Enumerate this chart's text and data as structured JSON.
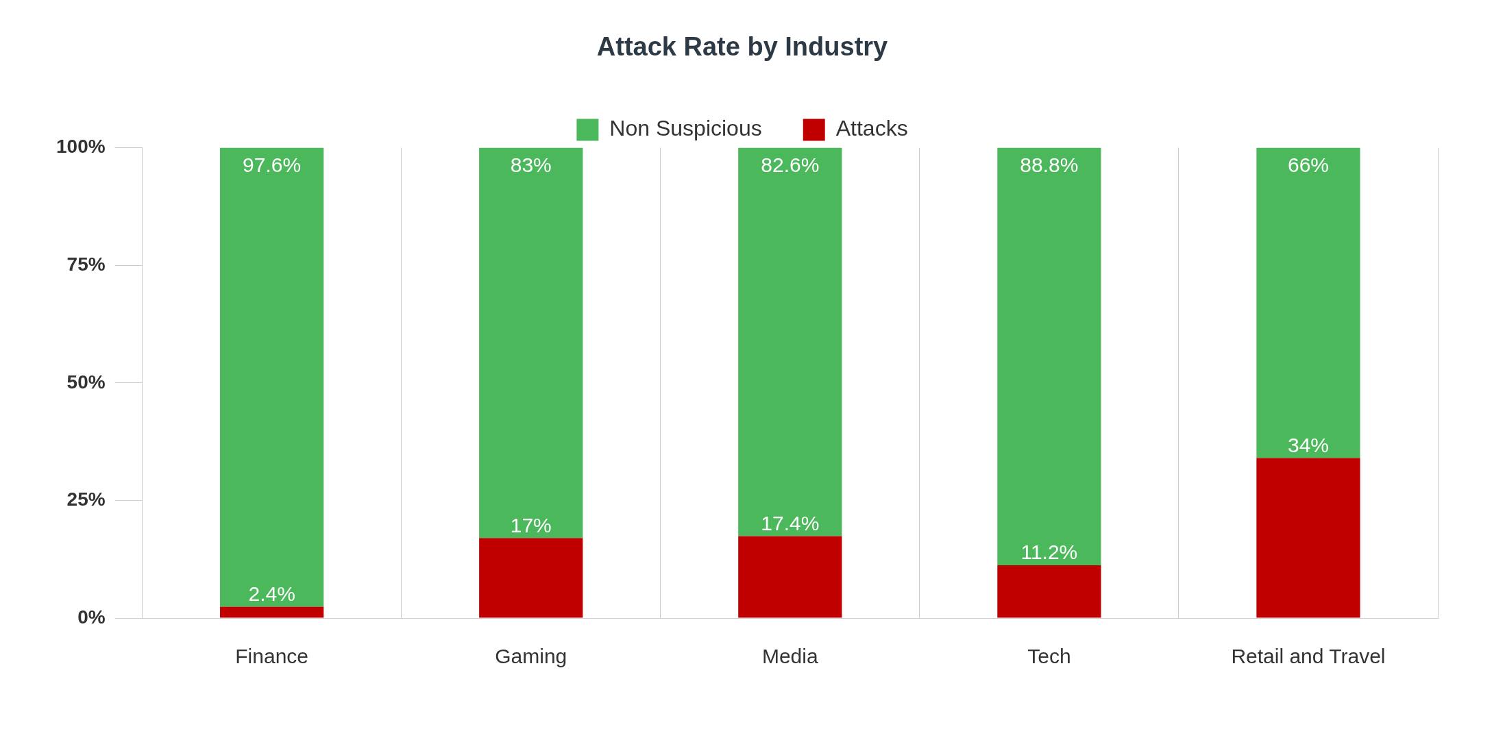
{
  "chart_data": {
    "type": "bar",
    "title": "Attack Rate by Industry",
    "categories": [
      "Finance",
      "Gaming",
      "Media",
      "Tech",
      "Retail and Travel"
    ],
    "stacked": true,
    "series": [
      {
        "name": "Attacks",
        "color": "#c00000",
        "values": [
          2.4,
          17,
          17.4,
          11.2,
          34
        ],
        "value_labels": [
          "2.4%",
          "17%",
          "17.4%",
          "11.2%",
          "34%"
        ]
      },
      {
        "name": "Non Suspicious",
        "color": "#4cb85c",
        "values": [
          97.6,
          83,
          82.6,
          88.8,
          66
        ],
        "value_labels": [
          "97.6%",
          "83%",
          "82.6%",
          "88.8%",
          "66%"
        ]
      }
    ],
    "ylim": [
      0,
      100
    ],
    "yticks": [
      {
        "value": 0,
        "label": "0%"
      },
      {
        "value": 25,
        "label": "25%"
      },
      {
        "value": 50,
        "label": "50%"
      },
      {
        "value": 75,
        "label": "75%"
      },
      {
        "value": 100,
        "label": "100%"
      }
    ],
    "grid": "x",
    "legend": "top"
  }
}
